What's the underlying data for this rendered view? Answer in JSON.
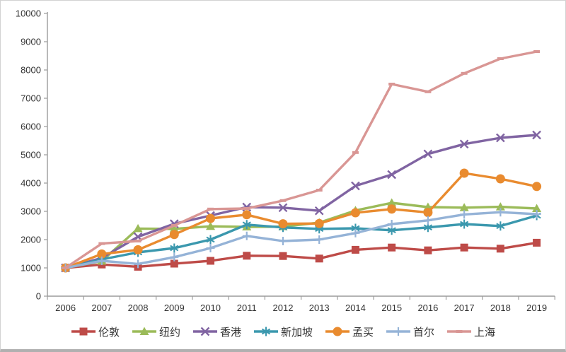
{
  "chart_data": {
    "type": "line",
    "title": "",
    "xlabel": "",
    "ylabel": "",
    "x": [
      "2006",
      "2007",
      "2008",
      "2009",
      "2010",
      "2011",
      "2012",
      "2013",
      "2014",
      "2015",
      "2016",
      "2017",
      "2018",
      "2019"
    ],
    "series": [
      {
        "id": "london",
        "name": "伦敦",
        "color": "#BE4B48",
        "marker": "square",
        "values": [
          1000,
          1120,
          1040,
          1150,
          1250,
          1430,
          1420,
          1330,
          1640,
          1720,
          1620,
          1720,
          1680,
          1890
        ]
      },
      {
        "id": "newyork",
        "name": "纽约",
        "color": "#9BBB59",
        "marker": "triangle",
        "values": [
          1000,
          1240,
          2390,
          2380,
          2470,
          2450,
          2460,
          2600,
          3030,
          3300,
          3150,
          3130,
          3160,
          3100
        ]
      },
      {
        "id": "hongkong",
        "name": "香港",
        "color": "#8064A2",
        "marker": "x",
        "values": [
          1000,
          1350,
          2100,
          2560,
          2850,
          3150,
          3130,
          3020,
          3900,
          4300,
          5030,
          5380,
          5600,
          5700
        ]
      },
      {
        "id": "singapore",
        "name": "新加坡",
        "color": "#3B98AE",
        "marker": "asterisk",
        "values": [
          1000,
          1300,
          1550,
          1700,
          2000,
          2530,
          2430,
          2380,
          2400,
          2330,
          2430,
          2550,
          2480,
          2850
        ]
      },
      {
        "id": "mumbai",
        "name": "孟买",
        "color": "#E98B2F",
        "marker": "circle",
        "values": [
          1000,
          1490,
          1640,
          2180,
          2750,
          2880,
          2560,
          2570,
          2950,
          3080,
          2960,
          4350,
          4150,
          3880
        ]
      },
      {
        "id": "seoul",
        "name": "首尔",
        "color": "#95B3D7",
        "marker": "plus",
        "values": [
          1000,
          1250,
          1140,
          1380,
          1700,
          2130,
          1950,
          2000,
          2230,
          2550,
          2680,
          2890,
          2970,
          2900
        ]
      },
      {
        "id": "shanghai",
        "name": "上海",
        "color": "#D99694",
        "marker": "dash",
        "values": [
          1000,
          1860,
          1950,
          2500,
          3080,
          3100,
          3380,
          3750,
          5080,
          7500,
          7230,
          7880,
          8400,
          8650
        ]
      }
    ],
    "ylim": [
      0,
      10000
    ],
    "ytick_step": 1000,
    "grid": false,
    "legend_position": "bottom",
    "axis_color": "#9b9b9b",
    "text_color": "#333333"
  }
}
